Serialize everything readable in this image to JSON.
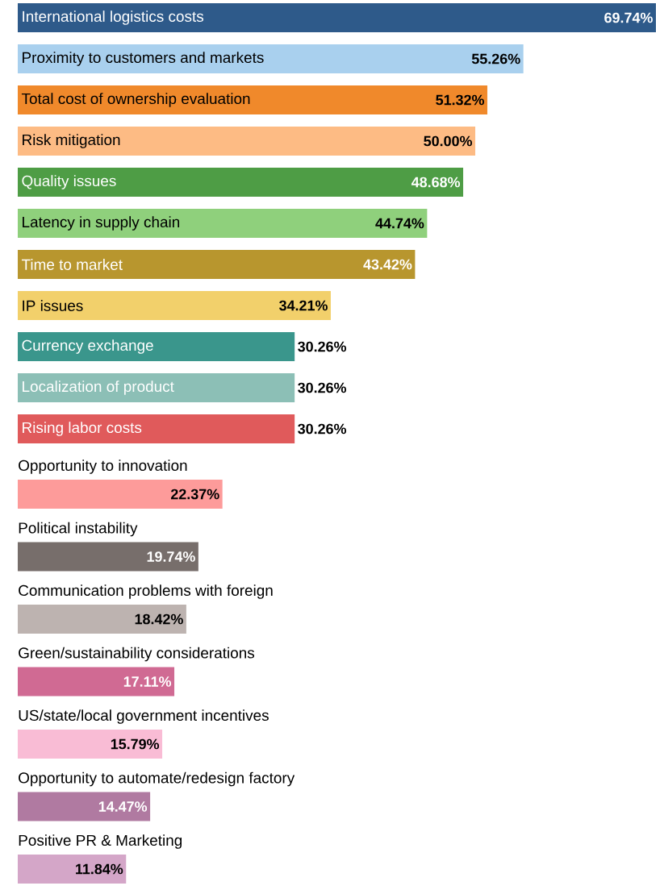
{
  "chart_data": [
    {
      "type": "bar",
      "orientation": "horizontal",
      "categories": [
        "International logistics costs",
        "Proximity to customers and markets",
        "Total cost of ownership evaluation",
        "Risk mitigation",
        "Quality issues",
        "Latency in supply chain",
        "Time to market",
        "IP issues",
        "Currency exchange",
        "Localization of product",
        "Rising labor costs"
      ],
      "values": [
        69.74,
        55.26,
        51.32,
        50.0,
        48.68,
        44.74,
        43.42,
        34.21,
        30.26,
        30.26,
        30.26
      ],
      "value_labels": [
        "69.74%",
        "55.26%",
        "51.32%",
        "50.00%",
        "48.68%",
        "44.74%",
        "43.42%",
        "34.21%",
        "30.26%",
        "30.26%",
        "30.26%"
      ],
      "colors": [
        "#2e5a8a",
        "#a9d0ee",
        "#f0892b",
        "#fdbb84",
        "#4e9d45",
        "#8fd07c",
        "#b8962e",
        "#f2d06b",
        "#3a968c",
        "#8cbfb6",
        "#e05a5b"
      ]
    },
    {
      "type": "bar",
      "orientation": "horizontal",
      "categories": [
        "Opportunity to innovation",
        "Political instability",
        "Communication problems with foreign",
        "Green/sustainability considerations",
        "US/state/local government incentives",
        "Opportunity to automate/redesign factory",
        "Positive PR & Marketing"
      ],
      "values": [
        22.37,
        19.74,
        18.42,
        17.11,
        15.79,
        14.47,
        11.84
      ],
      "value_labels": [
        "22.37%",
        "19.74%",
        "18.42%",
        "17.11%",
        "15.79%",
        "14.47%",
        "11.84%"
      ],
      "colors": [
        "#fd9b9a",
        "#776e6b",
        "#bdb3b0",
        "#d06a93",
        "#f9bcd5",
        "#b07aa1",
        "#d4a6c8"
      ]
    }
  ]
}
